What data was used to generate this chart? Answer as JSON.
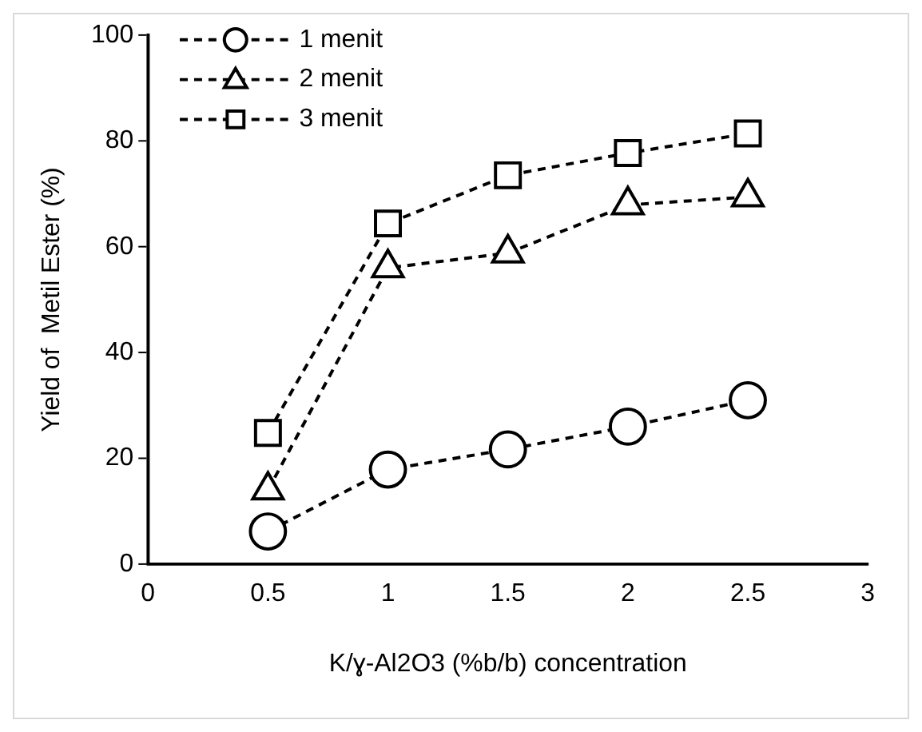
{
  "chart_data": {
    "type": "line",
    "xlabel": "K/ɣ-Al2O3 (%b/b) concentration",
    "ylabel": "Yield of  Metil Ester (%)",
    "x": [
      0.5,
      1,
      1.5,
      2,
      2.5
    ],
    "series": [
      {
        "name": "1 menit",
        "color": "#000000",
        "marker": "circle",
        "line_style": "dashed",
        "values": [
          6.2,
          17.9,
          21.7,
          26,
          31
        ]
      },
      {
        "name": "2 menit",
        "color": "#000000",
        "marker": "triangle",
        "line_style": "dashed",
        "values": [
          14,
          56,
          58.8,
          67.9,
          69.4
        ]
      },
      {
        "name": "3 menit",
        "color": "#000000",
        "marker": "square",
        "line_style": "dashed",
        "values": [
          24.8,
          64.4,
          73.5,
          77.7,
          81.4
        ]
      }
    ],
    "xlim": [
      0,
      3
    ],
    "xticks": [
      0,
      0.5,
      1,
      1.5,
      2,
      2.5,
      3
    ],
    "ylim": [
      0,
      100
    ],
    "yticks": [
      0,
      20,
      40,
      60,
      80,
      100
    ],
    "grid": false,
    "legend": "top left"
  }
}
